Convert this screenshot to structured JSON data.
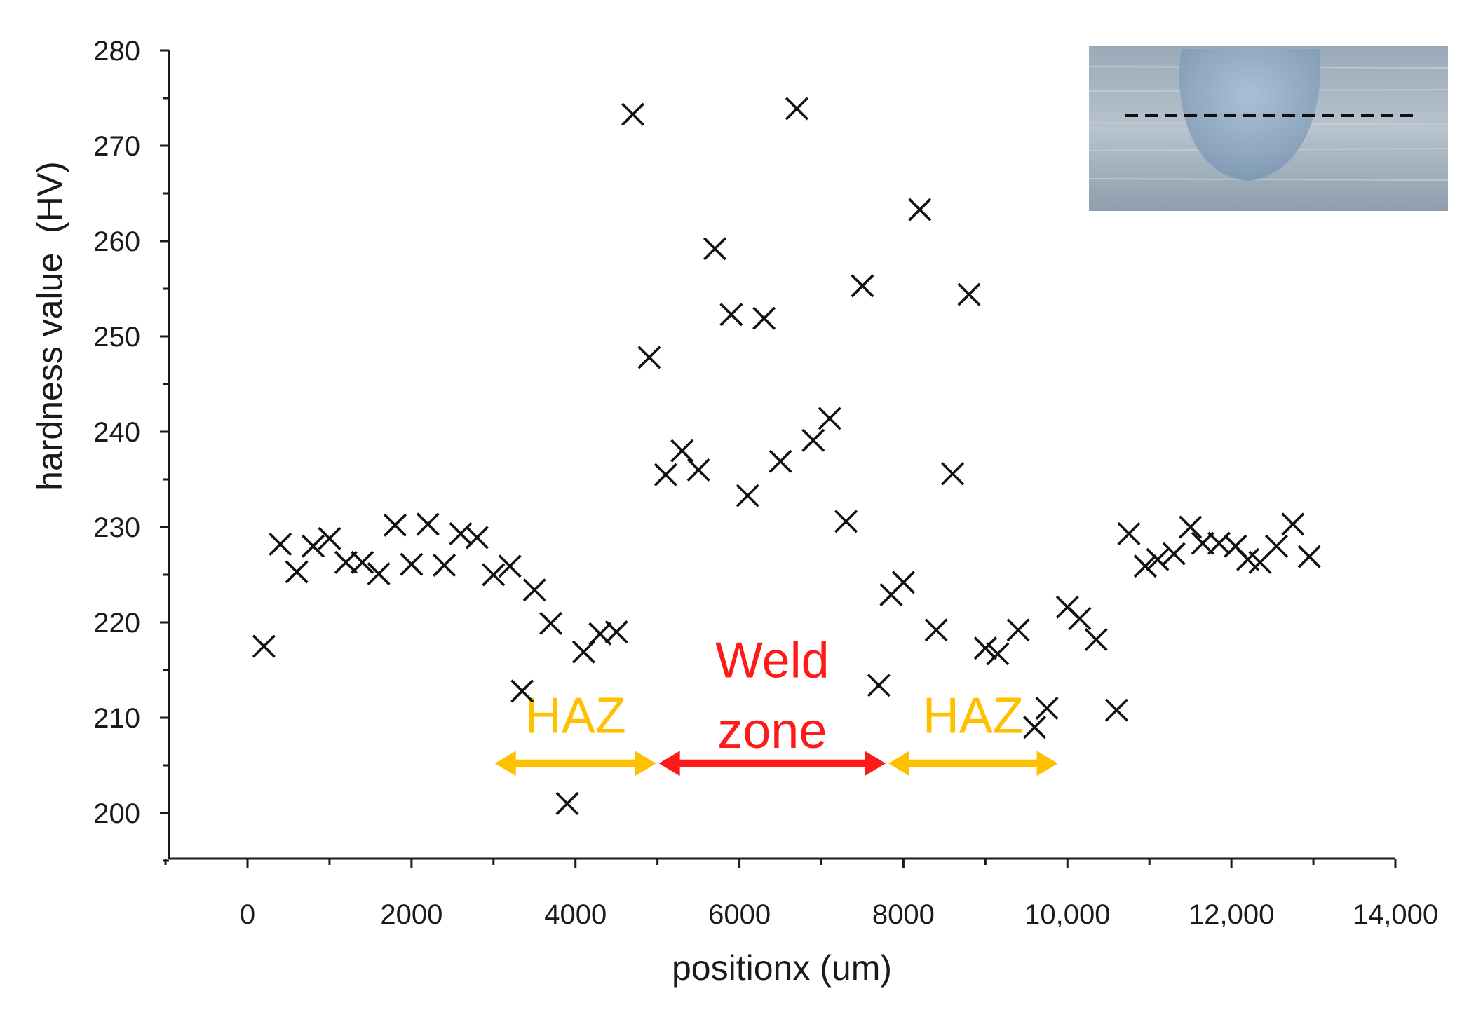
{
  "chart_data": {
    "type": "scatter",
    "title": "",
    "xlabel": "positionx (um)",
    "ylabel": "hardness value  (HV)",
    "xlim": [
      -1000,
      14000
    ],
    "ylim": [
      195,
      280
    ],
    "x_ticks": [
      0,
      2000,
      4000,
      6000,
      8000,
      10000,
      12000,
      14000
    ],
    "x_tick_labels": [
      "0",
      "2000",
      "4000",
      "6000",
      "8000",
      "10,000",
      "12,000",
      "14,000"
    ],
    "y_ticks": [
      200,
      210,
      220,
      230,
      240,
      250,
      260,
      270,
      280
    ],
    "y_tick_labels": [
      "200",
      "210",
      "220",
      "230",
      "240",
      "250",
      "260",
      "270",
      "280"
    ],
    "marker": "x",
    "series": [
      {
        "name": "hardness",
        "points": [
          [
            200,
            217.5
          ],
          [
            400,
            228.2
          ],
          [
            600,
            225.3
          ],
          [
            800,
            228.0
          ],
          [
            1000,
            228.8
          ],
          [
            1200,
            226.3
          ],
          [
            1400,
            226.3
          ],
          [
            1600,
            225.1
          ],
          [
            1800,
            230.2
          ],
          [
            2000,
            226.1
          ],
          [
            2200,
            230.3
          ],
          [
            2400,
            226.0
          ],
          [
            2600,
            229.3
          ],
          [
            2800,
            228.9
          ],
          [
            3000,
            225.0
          ],
          [
            3200,
            225.9
          ],
          [
            3350,
            212.8
          ],
          [
            3500,
            223.4
          ],
          [
            3700,
            219.9
          ],
          [
            3900,
            201.0
          ],
          [
            4100,
            216.9
          ],
          [
            4300,
            218.8
          ],
          [
            4500,
            219.0
          ],
          [
            4700,
            273.3
          ],
          [
            4900,
            247.8
          ],
          [
            5100,
            235.5
          ],
          [
            5300,
            238.0
          ],
          [
            5500,
            236.0
          ],
          [
            5700,
            259.2
          ],
          [
            5900,
            252.3
          ],
          [
            6100,
            233.3
          ],
          [
            6300,
            251.9
          ],
          [
            6500,
            236.9
          ],
          [
            6700,
            273.9
          ],
          [
            6900,
            239.1
          ],
          [
            7100,
            241.4
          ],
          [
            7300,
            230.6
          ],
          [
            7500,
            255.3
          ],
          [
            7700,
            213.4
          ],
          [
            7850,
            222.9
          ],
          [
            8000,
            224.2
          ],
          [
            8200,
            263.3
          ],
          [
            8400,
            219.2
          ],
          [
            8600,
            235.6
          ],
          [
            8800,
            254.4
          ],
          [
            9000,
            217.3
          ],
          [
            9150,
            216.7
          ],
          [
            9400,
            219.2
          ],
          [
            9600,
            209.0
          ],
          [
            9750,
            211.0
          ],
          [
            10000,
            221.6
          ],
          [
            10150,
            220.4
          ],
          [
            10350,
            218.2
          ],
          [
            10600,
            210.8
          ],
          [
            10750,
            229.3
          ],
          [
            10950,
            225.9
          ],
          [
            11100,
            226.6
          ],
          [
            11300,
            227.2
          ],
          [
            11500,
            230.0
          ],
          [
            11650,
            228.3
          ],
          [
            11850,
            228.3
          ],
          [
            12050,
            228.0
          ],
          [
            12200,
            226.6
          ],
          [
            12350,
            226.3
          ],
          [
            12550,
            228.0
          ],
          [
            12750,
            230.3
          ],
          [
            12950,
            226.9
          ]
        ]
      }
    ],
    "annotations": [
      {
        "text": "HAZ",
        "color": "#ffc000",
        "x_range": [
          3000,
          5000
        ],
        "arrow_y": 205.2,
        "label_y": 210.2
      },
      {
        "text": "Weld",
        "text2": "zone",
        "color": "#ff1a1a",
        "x_range": [
          5000,
          7800
        ],
        "arrow_y": 205.2,
        "label_y": 216.0,
        "label2_y": 208.6
      },
      {
        "text": "HAZ",
        "color": "#ffc000",
        "x_range": [
          7800,
          9900
        ],
        "arrow_y": 205.2,
        "label_y": 210.2
      }
    ],
    "inset": {
      "description_color": "#8fa6b8"
    }
  }
}
